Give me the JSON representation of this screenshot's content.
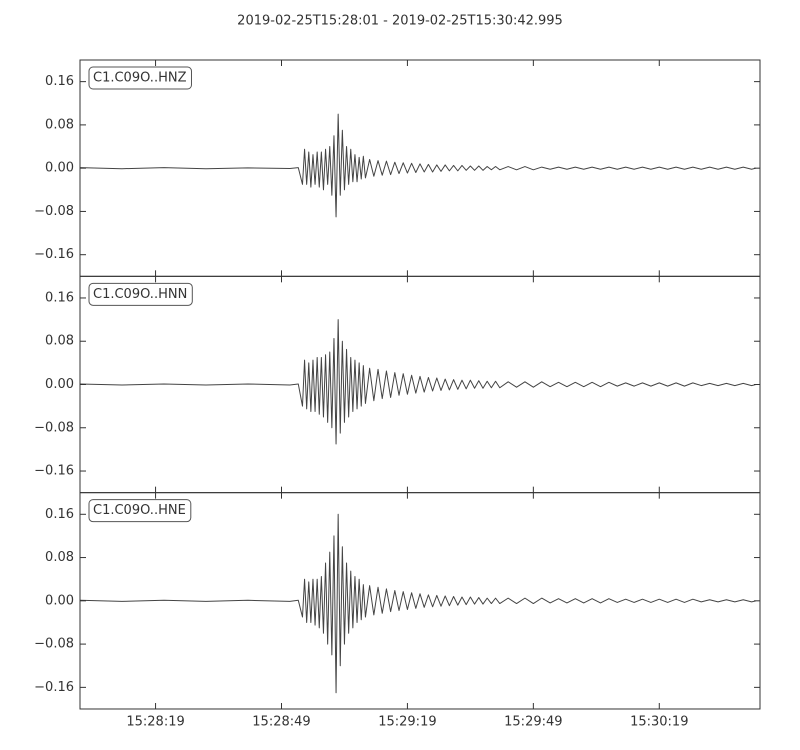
{
  "chart_data": {
    "type": "line",
    "subplots": true,
    "title": "2019-02-25T15:28:01  -  2019-02-25T15:30:42.995",
    "xlim": [
      0,
      161.995
    ],
    "xticks": [
      {
        "value": 18,
        "label": "15:28:19"
      },
      {
        "value": 48,
        "label": "15:28:49"
      },
      {
        "value": 78,
        "label": "15:29:19"
      },
      {
        "value": 108,
        "label": "15:29:49"
      },
      {
        "value": 138,
        "label": "15:30:19"
      }
    ],
    "ylim": [
      -0.2,
      0.2
    ],
    "yticks": [
      {
        "value": -0.16,
        "label": "−0.16"
      },
      {
        "value": -0.08,
        "label": "−0.08"
      },
      {
        "value": 0,
        "label": "0.00"
      },
      0.08,
      0.16
    ],
    "x": [
      0,
      10,
      20,
      30,
      40,
      50,
      52,
      53,
      53.5,
      54,
      54.5,
      55,
      55.5,
      56,
      56.5,
      57,
      57.5,
      58,
      58.5,
      59,
      59.5,
      60,
      60.5,
      61,
      61.5,
      62,
      62.5,
      63,
      63.5,
      64,
      64.5,
      65,
      65.5,
      66,
      66.5,
      67,
      67.5,
      68,
      69,
      70,
      71,
      72,
      73,
      74,
      75,
      76,
      77,
      78,
      79,
      80,
      81,
      82,
      83,
      84,
      85,
      86,
      87,
      88,
      89,
      90,
      91,
      92,
      93,
      94,
      95,
      96,
      97,
      98,
      99,
      100,
      102,
      104,
      106,
      108,
      110,
      112,
      114,
      116,
      118,
      120,
      122,
      124,
      126,
      128,
      130,
      132,
      134,
      136,
      138,
      140,
      142,
      144,
      146,
      148,
      150,
      152,
      154,
      156,
      158,
      160,
      161
    ],
    "series": [
      {
        "name": "C1.C09O..HNZ",
        "color": "#444444",
        "values": [
          0.001,
          -0.001,
          0.001,
          -0.001,
          0.0005,
          -0.0005,
          0.001,
          -0.03,
          0.035,
          -0.03,
          0.03,
          -0.035,
          0.025,
          -0.03,
          0.03,
          -0.035,
          0.03,
          -0.04,
          0.035,
          -0.03,
          0.04,
          -0.05,
          0.06,
          -0.09,
          0.1,
          -0.05,
          0.07,
          -0.04,
          0.04,
          -0.03,
          0.035,
          -0.025,
          0.025,
          -0.025,
          0.02,
          -0.02,
          0.022,
          -0.018,
          0.016,
          -0.015,
          0.014,
          -0.013,
          0.013,
          -0.012,
          0.011,
          -0.01,
          0.01,
          -0.009,
          0.009,
          -0.008,
          0.008,
          -0.007,
          0.007,
          -0.007,
          0.006,
          -0.006,
          0.006,
          -0.005,
          0.005,
          -0.005,
          0.005,
          -0.004,
          0.004,
          -0.004,
          0.004,
          -0.004,
          0.003,
          -0.003,
          0.003,
          -0.003,
          0.003,
          -0.003,
          0.003,
          -0.003,
          0.002,
          -0.002,
          0.002,
          -0.002,
          0.002,
          -0.002,
          0.002,
          -0.002,
          0.002,
          -0.002,
          0.002,
          -0.002,
          0.002,
          -0.002,
          0.002,
          -0.002,
          0.002,
          -0.002,
          0.002,
          -0.002,
          0.002,
          -0.002,
          0.002,
          -0.002,
          0.002,
          -0.002,
          0
        ]
      },
      {
        "name": "C1.C09O..HNN",
        "color": "#444444",
        "values": [
          0.001,
          -0.001,
          0.001,
          -0.001,
          0.001,
          -0.001,
          0.001,
          -0.04,
          0.045,
          -0.045,
          0.04,
          -0.05,
          0.045,
          -0.05,
          0.05,
          -0.055,
          0.05,
          -0.06,
          0.055,
          -0.07,
          0.06,
          -0.08,
          0.085,
          -0.11,
          0.12,
          -0.09,
          0.08,
          -0.07,
          0.065,
          -0.06,
          0.05,
          -0.05,
          0.045,
          -0.045,
          0.04,
          -0.04,
          0.035,
          -0.035,
          0.03,
          -0.03,
          0.028,
          -0.026,
          0.025,
          -0.024,
          0.022,
          -0.02,
          0.02,
          -0.018,
          0.017,
          -0.016,
          0.015,
          -0.014,
          0.013,
          -0.012,
          0.012,
          -0.011,
          0.01,
          -0.01,
          0.009,
          -0.009,
          0.008,
          -0.008,
          0.008,
          -0.007,
          0.007,
          -0.007,
          0.006,
          -0.006,
          0.006,
          -0.006,
          0.005,
          -0.005,
          0.005,
          -0.005,
          0.005,
          -0.004,
          0.004,
          -0.004,
          0.004,
          -0.004,
          0.004,
          -0.004,
          0.004,
          -0.003,
          0.003,
          -0.003,
          0.003,
          -0.003,
          0.003,
          -0.003,
          0.003,
          -0.003,
          0.003,
          -0.002,
          0.002,
          -0.002,
          0.002,
          -0.002,
          0.002,
          -0.002,
          0
        ]
      },
      {
        "name": "C1.C09O..HNE",
        "color": "#444444",
        "values": [
          0.001,
          -0.001,
          0.001,
          -0.001,
          0.001,
          -0.001,
          0.001,
          -0.03,
          0.04,
          -0.04,
          0.035,
          -0.04,
          0.04,
          -0.045,
          0.04,
          -0.05,
          0.045,
          -0.06,
          0.07,
          -0.08,
          0.09,
          -0.1,
          0.12,
          -0.17,
          0.16,
          -0.12,
          0.1,
          -0.08,
          0.07,
          -0.06,
          0.055,
          -0.05,
          0.045,
          -0.04,
          0.04,
          -0.035,
          0.03,
          -0.03,
          0.028,
          -0.026,
          0.025,
          -0.023,
          0.022,
          -0.02,
          0.019,
          -0.018,
          0.017,
          -0.016,
          0.015,
          -0.014,
          0.013,
          -0.012,
          0.011,
          -0.011,
          0.01,
          -0.01,
          0.009,
          -0.009,
          0.008,
          -0.008,
          0.007,
          -0.007,
          0.007,
          -0.006,
          0.006,
          -0.006,
          0.005,
          -0.005,
          0.005,
          -0.005,
          0.005,
          -0.005,
          0.005,
          -0.005,
          0.005,
          -0.004,
          0.004,
          -0.004,
          0.004,
          -0.004,
          0.004,
          -0.004,
          0.004,
          -0.003,
          0.003,
          -0.003,
          0.003,
          -0.003,
          0.003,
          -0.003,
          0.003,
          -0.003,
          0.003,
          -0.002,
          0.002,
          -0.002,
          0.002,
          -0.002,
          0.002,
          -0.002,
          0
        ]
      }
    ]
  }
}
